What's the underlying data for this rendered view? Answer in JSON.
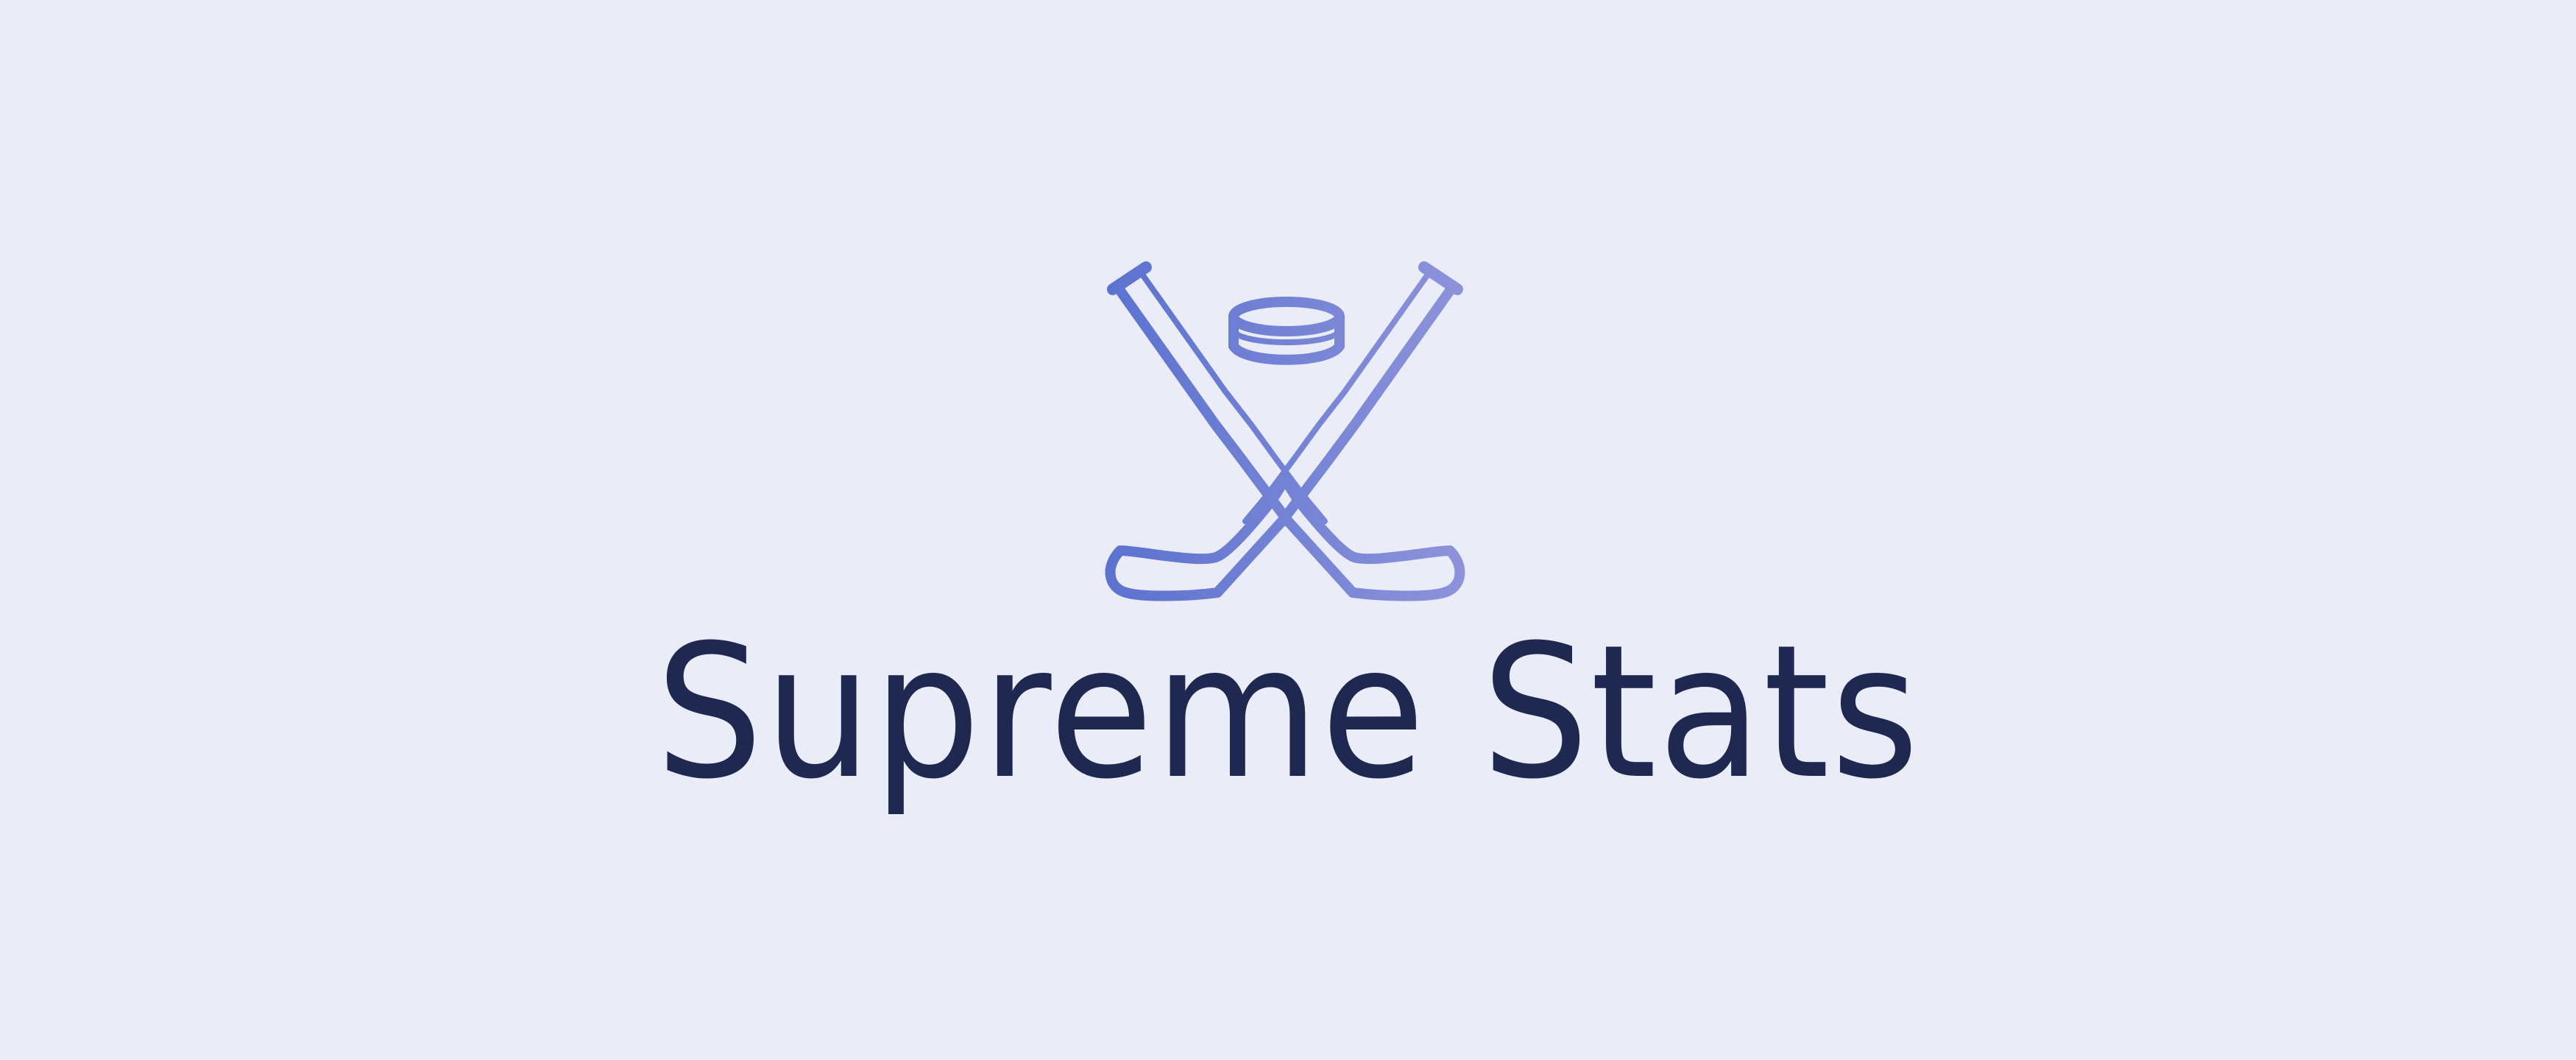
{
  "colors": {
    "background": "#EAEDF8",
    "logo_gradient_start": "#5B72CF",
    "logo_gradient_end": "#8D93DA",
    "wordmark": "#1E2850"
  },
  "logo": {
    "icon": "crossed-hockey-sticks-and-puck-icon"
  },
  "brand": {
    "name": "Supreme Stats"
  }
}
